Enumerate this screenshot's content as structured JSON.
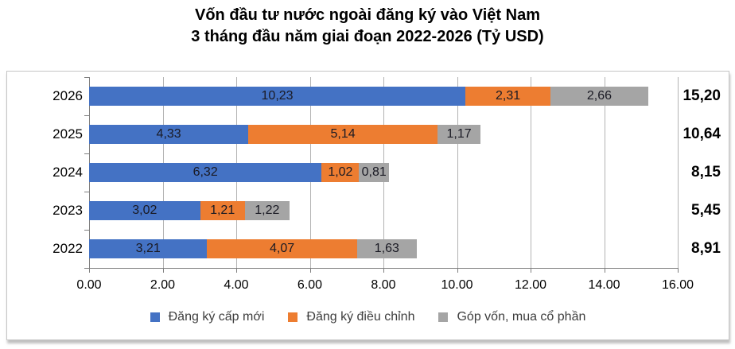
{
  "title": {
    "line1": "Vốn đầu tư nước ngoài đăng ký vào Việt Nam",
    "line2": "3 tháng đầu năm giai đoạn 2022-2026 (Tỷ USD)"
  },
  "chart_data": {
    "type": "bar",
    "orientation": "horizontal-stacked",
    "categories": [
      "2026",
      "2025",
      "2024",
      "2023",
      "2022"
    ],
    "series": [
      {
        "name": "Đăng ký cấp mới",
        "color": "#4472C4",
        "values": [
          10.23,
          4.33,
          6.32,
          3.02,
          3.21
        ],
        "labels": [
          "10,23",
          "4,33",
          "6,32",
          "3,02",
          "3,21"
        ]
      },
      {
        "name": "Đăng ký điều chỉnh",
        "color": "#ED7D31",
        "values": [
          2.31,
          5.14,
          1.02,
          1.21,
          4.07
        ],
        "labels": [
          "2,31",
          "5,14",
          "1,02",
          "1,21",
          "4,07"
        ]
      },
      {
        "name": "Góp vốn, mua cổ phần",
        "color": "#A5A5A5",
        "values": [
          2.66,
          1.17,
          0.81,
          1.22,
          1.63
        ],
        "labels": [
          "2,66",
          "1,17",
          "0,81",
          "1,22",
          "1,63"
        ]
      }
    ],
    "totals": {
      "values": [
        15.2,
        10.64,
        8.15,
        5.45,
        8.91
      ],
      "labels": [
        "15,20",
        "10,64",
        "8,15",
        "5,45",
        "8,91"
      ]
    },
    "x_axis": {
      "min": 0,
      "max": 16,
      "tick_step": 2,
      "tick_labels": [
        "0.00",
        "2.00",
        "4.00",
        "6.00",
        "8.00",
        "10.00",
        "12.00",
        "14.00",
        "16.00"
      ]
    },
    "grid": true,
    "legend_position": "bottom"
  },
  "colors": {
    "label_text": "#1a1a24",
    "gridline": "#b3b3b3",
    "axis": "#7f7f7f",
    "border": "#c6c6c6"
  }
}
